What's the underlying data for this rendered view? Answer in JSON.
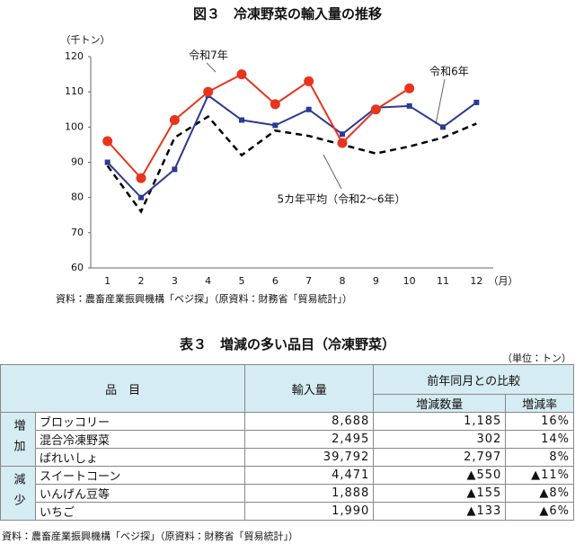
{
  "chart_data": {
    "type": "line",
    "title": "図３　冷凍野菜の輸入量の推移",
    "y_label": "（千トン）",
    "x_label": "（月）",
    "categories": [
      "1",
      "2",
      "3",
      "4",
      "5",
      "6",
      "7",
      "8",
      "9",
      "10",
      "11",
      "12"
    ],
    "series": [
      {
        "name": "令和7年",
        "color": "#e8341c",
        "marker": "circle",
        "dash": false,
        "values": [
          96,
          85.5,
          102,
          110,
          115,
          106.5,
          113,
          95.5,
          105,
          111,
          null,
          null
        ]
      },
      {
        "name": "令和6年",
        "color": "#2b3a92",
        "marker": "square",
        "dash": false,
        "values": [
          90,
          80,
          88,
          109,
          102,
          100.5,
          105,
          98,
          105.5,
          106,
          100,
          107
        ]
      },
      {
        "name": "5カ年平均（令和2～6年）",
        "color": "#000000",
        "marker": "none",
        "dash": true,
        "values": [
          89,
          76,
          97,
          103,
          92,
          99,
          97.5,
          95,
          92.5,
          94.5,
          97,
          101
        ]
      }
    ],
    "ylim": [
      60,
      120
    ],
    "yticks": [
      60,
      70,
      80,
      90,
      100,
      110,
      120
    ],
    "grid": false,
    "source": "資料：農畜産業振興機構「ベジ探」（原資料：財務省「貿易統計」）"
  },
  "table": {
    "title": "表３　増減の多い品目（冷凍野菜）",
    "unit": "（単位：トン）",
    "header": {
      "item": "品　目",
      "import": "輸入量",
      "compare": "前年同月との比較",
      "qty": "増減数量",
      "rate": "増減率"
    },
    "groups": [
      {
        "label": "増加",
        "rows": [
          [
            "ブロッコリー",
            "8,688",
            "1,185",
            "16%"
          ],
          [
            "混合冷凍野菜",
            "2,495",
            "302",
            "14%"
          ],
          [
            "ばれいしょ",
            "39,792",
            "2,797",
            "8%"
          ]
        ]
      },
      {
        "label": "減少",
        "rows": [
          [
            "スイートコーン",
            "4,471",
            "▲550",
            "▲11%"
          ],
          [
            "いんげん豆等",
            "1,888",
            "▲155",
            "▲8%"
          ],
          [
            "いちご",
            "1,990",
            "▲133",
            "▲6%"
          ]
        ]
      }
    ],
    "source": "資料：農畜産業振興機構「ベジ探」（原資料：財務省「貿易統計」）"
  }
}
